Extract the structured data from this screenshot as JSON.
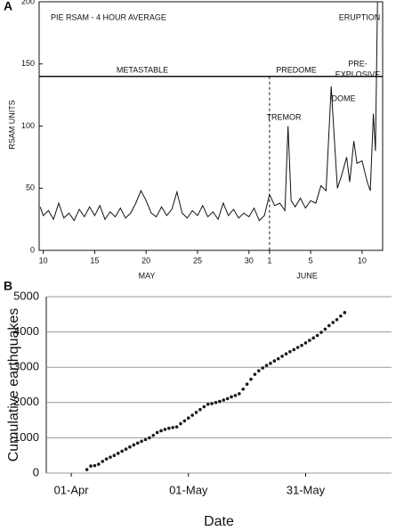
{
  "chart_data": [
    {
      "type": "line",
      "panel": "A",
      "title": "PIE RSAM - 4 HOUR AVERAGE",
      "ylabel": "RSAM UNITS",
      "x_groups": [
        "MAY",
        "JUNE"
      ],
      "annotations": [
        "METASTABLE",
        "PREDOME",
        "PRE-",
        "EXPLOSIVE",
        "TREMOR",
        "DOME",
        "ERUPTION"
      ],
      "frame": true,
      "grid": false,
      "xlim": [
        9.6,
        43
      ],
      "ylim": [
        0,
        200
      ],
      "xticks": [
        10,
        15,
        20,
        25,
        30,
        {
          "value": 32,
          "label": "1"
        },
        {
          "value": 36,
          "label": "5"
        },
        {
          "value": 41,
          "label": "10"
        }
      ],
      "yticks": [
        0,
        50,
        100,
        150,
        200
      ],
      "reference_lines": [
        {
          "y": 140
        },
        {
          "x": 32
        }
      ],
      "x": [
        9.7,
        10,
        10.5,
        11,
        11.5,
        12,
        12.5,
        13,
        13.5,
        14,
        14.5,
        15,
        15.5,
        16,
        16.5,
        17,
        17.5,
        18,
        18.5,
        19,
        19.5,
        20,
        20.5,
        21,
        21.5,
        22,
        22.5,
        23,
        23.5,
        24,
        24.5,
        25,
        25.5,
        26,
        26.5,
        27,
        27.5,
        28,
        28.5,
        29,
        29.5,
        30,
        30.5,
        31,
        31.5,
        32,
        32.5,
        33,
        33.5,
        33.8,
        34.1,
        34.5,
        35,
        35.5,
        36,
        36.5,
        37,
        37.5,
        38,
        38.3,
        38.6,
        39,
        39.5,
        39.8,
        40.2,
        40.5,
        41,
        41.5,
        41.8,
        42.1,
        42.3,
        42.5
      ],
      "series": [
        {
          "color": "#111111",
          "values": [
            35,
            28,
            32,
            25,
            38,
            26,
            30,
            24,
            33,
            27,
            35,
            28,
            36,
            25,
            31,
            27,
            34,
            26,
            30,
            38,
            48,
            40,
            30,
            27,
            35,
            28,
            33,
            47,
            30,
            26,
            32,
            28,
            36,
            27,
            31,
            25,
            38,
            28,
            33,
            26,
            30,
            27,
            34,
            24,
            28,
            45,
            36,
            38,
            32,
            100,
            40,
            35,
            42,
            34,
            40,
            38,
            52,
            48,
            132,
            90,
            50,
            60,
            75,
            55,
            88,
            70,
            72,
            55,
            48,
            110,
            80,
            200
          ]
        }
      ]
    },
    {
      "type": "scatter",
      "panel": "B",
      "xlabel": "Date",
      "ylabel": "Cumulative earthquakes",
      "frame": false,
      "grid": true,
      "xlim": [
        -6.4,
        82
      ],
      "ylim": [
        0,
        5000
      ],
      "xticks": [
        {
          "value": 0,
          "label": "01-Apr"
        },
        {
          "value": 30,
          "label": "01-May"
        },
        {
          "value": 60,
          "label": "31-May"
        }
      ],
      "yticks": [
        0,
        1000,
        2000,
        3000,
        4000,
        5000
      ],
      "x": [
        4,
        5,
        6,
        7,
        8,
        9,
        10,
        11,
        12,
        13,
        14,
        15,
        16,
        17,
        18,
        19,
        20,
        21,
        22,
        23,
        24,
        25,
        26,
        27,
        28,
        29,
        30,
        31,
        32,
        33,
        34,
        35,
        36,
        37,
        38,
        39,
        40,
        41,
        42,
        43,
        44,
        45,
        46,
        47,
        48,
        49,
        50,
        51,
        52,
        53,
        54,
        55,
        56,
        57,
        58,
        59,
        60,
        61,
        62,
        63,
        64,
        65,
        66,
        67,
        68,
        69,
        70
      ],
      "series": [
        {
          "color": "#1a1a1a",
          "values": [
            100,
            200,
            210,
            250,
            330,
            400,
            450,
            500,
            560,
            620,
            680,
            740,
            800,
            850,
            900,
            950,
            1000,
            1070,
            1150,
            1200,
            1240,
            1270,
            1290,
            1310,
            1400,
            1480,
            1560,
            1640,
            1720,
            1800,
            1880,
            1950,
            1970,
            2000,
            2030,
            2070,
            2110,
            2160,
            2200,
            2250,
            2380,
            2520,
            2660,
            2800,
            2900,
            2980,
            3050,
            3110,
            3180,
            3240,
            3310,
            3380,
            3440,
            3500,
            3560,
            3620,
            3690,
            3760,
            3830,
            3900,
            3990,
            4080,
            4180,
            4270,
            4350,
            4450,
            4550
          ]
        }
      ]
    }
  ]
}
